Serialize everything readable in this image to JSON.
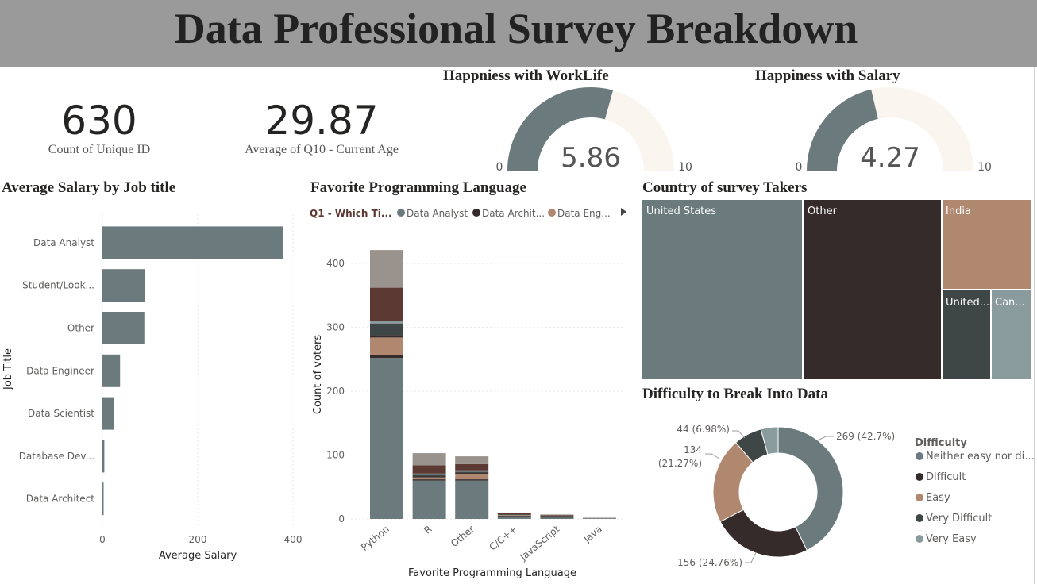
{
  "header": {
    "title": "Data Professional Survey Breakdown"
  },
  "cards": [
    {
      "value": "630",
      "label": "Count of Unique ID"
    },
    {
      "value": "29.87",
      "label": "Average of Q10 - Current Age"
    }
  ],
  "gauges": [
    {
      "title": "Happniess with WorkLife",
      "value": 5.86,
      "value_text": "5.86",
      "min_text": "0",
      "max_text": "10",
      "min": 0,
      "max": 10
    },
    {
      "title": "Happiness with Salary",
      "value": 4.27,
      "value_text": "4.27",
      "min_text": "0",
      "max_text": "10",
      "min": 0,
      "max": 10
    }
  ],
  "colors": {
    "slate": "#6b7a7c",
    "dark": "#352b2a",
    "tan": "#b0886f",
    "charcoal": "#3e4646",
    "light_slate": "#8a9b9e",
    "maroon": "#5c3a33",
    "grey_brown": "#9a938d",
    "gauge_track": "#faf5ef"
  },
  "chart_data": [
    {
      "type": "bar",
      "title": "Average Salary by Job title",
      "xlabel": "Average Salary",
      "ylabel": "Job Title",
      "categories": [
        "Data Analyst",
        "Student/Look...",
        "Other",
        "Data Engineer",
        "Data Scientist",
        "Database Dev...",
        "Data Architect"
      ],
      "values": [
        380,
        90,
        88,
        37,
        24,
        4,
        2
      ],
      "xlim": [
        0,
        400
      ],
      "xticks": [
        "0",
        "200",
        "400"
      ],
      "grid": true
    },
    {
      "type": "bar",
      "stacked": true,
      "title": "Favorite Programming Language",
      "xlabel": "Favorite Programming Language",
      "ylabel": "Count of voters",
      "legend_title": "Q1 - Which Ti...",
      "legend": [
        "Data Analyst",
        "Data Archit...",
        "Data Eng..."
      ],
      "legend_position": "top",
      "categories": [
        "Python",
        "R",
        "Other",
        "C/C++",
        "JavaScript",
        "Java"
      ],
      "yticks": [
        "0",
        "100",
        "200",
        "300",
        "400"
      ],
      "ylim": [
        0,
        440
      ],
      "series": [
        {
          "values": [
            252,
            60,
            60,
            4,
            2,
            1
          ]
        },
        {
          "values": [
            4,
            2,
            2,
            1,
            1,
            0
          ]
        },
        {
          "values": [
            28,
            3,
            8,
            1,
            1,
            0
          ]
        },
        {
          "values": [
            4,
            2,
            2,
            0,
            1,
            0
          ]
        },
        {
          "values": [
            18,
            2,
            2,
            1,
            0,
            0
          ]
        },
        {
          "values": [
            4,
            2,
            2,
            0,
            0,
            0
          ]
        },
        {
          "values": [
            52,
            13,
            10,
            2,
            1,
            0
          ]
        },
        {
          "values": [
            59,
            19,
            12,
            1,
            1,
            1
          ]
        }
      ]
    },
    {
      "type": "treemap",
      "title": "Country of survey Takers",
      "labels": [
        "United States",
        "Other",
        "India",
        "United...",
        "Can..."
      ]
    },
    {
      "type": "pie",
      "donut": true,
      "title": "Difficulty to Break Into Data",
      "legend_title": "Difficulty",
      "legend_position": "right",
      "slices": [
        {
          "name": "Neither easy nor di...",
          "value": 269,
          "label": "269 (42.7%)"
        },
        {
          "name": "Difficult",
          "value": 156,
          "label": "156 (24.76%)"
        },
        {
          "name": "Easy",
          "value": 134,
          "label_line1": "134",
          "label_line2": "(21.27%)"
        },
        {
          "name": "Very Difficult",
          "value": 44,
          "label": "44 (6.98%)"
        },
        {
          "name": "Very Easy",
          "value": 27
        }
      ]
    }
  ]
}
